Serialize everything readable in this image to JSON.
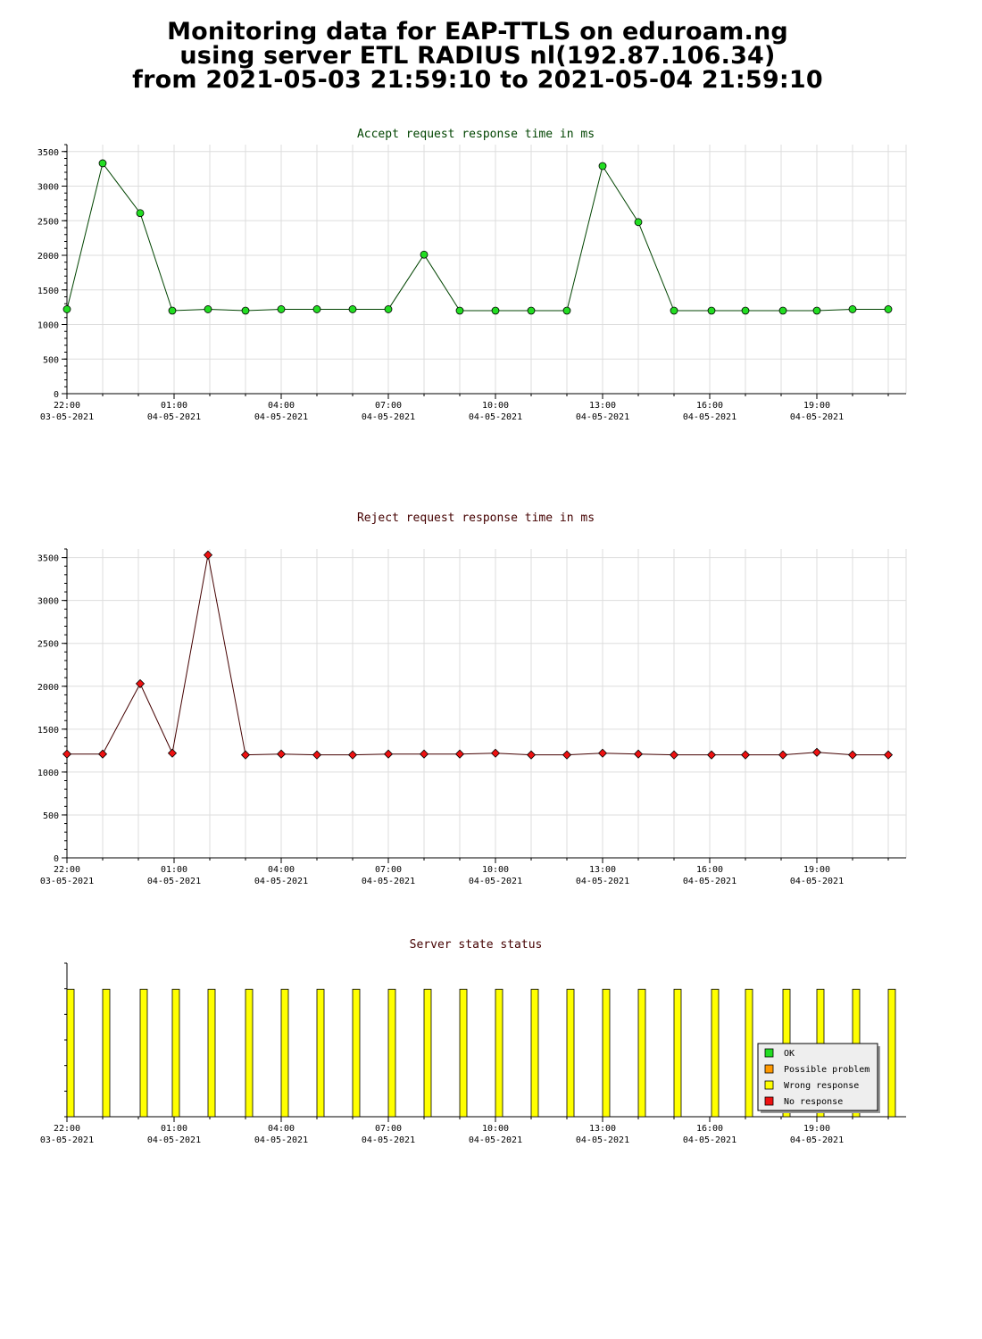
{
  "page": {
    "title_lines": [
      "Monitoring data for EAP-TTLS on eduroam.ng",
      "using server ETL RADIUS nl(192.87.106.34)",
      "from 2021-05-03 21:59:10 to 2021-05-04 21:59:10"
    ]
  },
  "x_axis_ticks": [
    {
      "time": "22:00",
      "date": "03-05-2021",
      "hours": 0
    },
    {
      "time": "01:00",
      "date": "04-05-2021",
      "hours": 3
    },
    {
      "time": "04:00",
      "date": "04-05-2021",
      "hours": 6
    },
    {
      "time": "07:00",
      "date": "04-05-2021",
      "hours": 9
    },
    {
      "time": "10:00",
      "date": "04-05-2021",
      "hours": 12
    },
    {
      "time": "13:00",
      "date": "04-05-2021",
      "hours": 15
    },
    {
      "time": "16:00",
      "date": "04-05-2021",
      "hours": 18
    },
    {
      "time": "19:00",
      "date": "04-05-2021",
      "hours": 21
    }
  ],
  "chart_data": [
    {
      "type": "line",
      "title": "Accept request response time in ms",
      "title_color": "#004400",
      "line_color": "#004400",
      "marker_color": "#22dd22",
      "ylim": [
        0,
        3600
      ],
      "yticks": [
        0,
        500,
        1000,
        1500,
        2000,
        2500,
        3000,
        3500
      ],
      "xlim_hours": [
        0,
        23.5
      ],
      "x_hours": [
        0,
        1,
        2.05,
        2.95,
        3.95,
        5,
        6,
        7,
        8,
        9,
        10,
        11,
        12,
        13,
        14,
        15,
        16,
        17,
        18.05,
        19,
        20.05,
        21,
        22,
        23
      ],
      "values": [
        1220,
        3330,
        2610,
        1200,
        1220,
        1200,
        1220,
        1220,
        1220,
        1220,
        2010,
        1200,
        1200,
        1200,
        1200,
        3290,
        2480,
        1200,
        1200,
        1200,
        1200,
        1200,
        1220,
        1220
      ]
    },
    {
      "type": "line",
      "title": "Reject request response time in ms",
      "title_color": "#440000",
      "line_color": "#440000",
      "marker_color": "#ee1111",
      "ylim": [
        0,
        3600
      ],
      "yticks": [
        0,
        500,
        1000,
        1500,
        2000,
        2500,
        3000,
        3500
      ],
      "xlim_hours": [
        0,
        23.5
      ],
      "x_hours": [
        0,
        1,
        2.05,
        2.95,
        3.95,
        5,
        6,
        7,
        8,
        9,
        10,
        11,
        12,
        13,
        14,
        15,
        16,
        17,
        18.05,
        19,
        20.05,
        21,
        22,
        23
      ],
      "values": [
        1210,
        1210,
        2030,
        1220,
        3530,
        1200,
        1210,
        1200,
        1200,
        1210,
        1210,
        1210,
        1220,
        1200,
        1200,
        1220,
        1210,
        1200,
        1200,
        1200,
        1200,
        1230,
        1200,
        1200
      ]
    },
    {
      "type": "bar",
      "title": "Server state status",
      "title_color": "#440000",
      "bar_color": "#ffff00",
      "bar_height_fraction": 0.83,
      "xlim_hours": [
        0,
        23.5
      ],
      "x_hours": [
        0.1,
        1.1,
        2.15,
        3.05,
        4.05,
        5.1,
        6.1,
        7.1,
        8.1,
        9.1,
        10.1,
        11.1,
        12.1,
        13.1,
        14.1,
        15.1,
        16.1,
        17.1,
        18.15,
        19.1,
        20.15,
        21.1,
        22.1,
        23.1
      ],
      "states": [
        "Wrong response",
        "Wrong response",
        "Wrong response",
        "Wrong response",
        "Wrong response",
        "Wrong response",
        "Wrong response",
        "Wrong response",
        "Wrong response",
        "Wrong response",
        "Wrong response",
        "Wrong response",
        "Wrong response",
        "Wrong response",
        "Wrong response",
        "Wrong response",
        "Wrong response",
        "Wrong response",
        "Wrong response",
        "Wrong response",
        "Wrong response",
        "Wrong response",
        "Wrong response",
        "Wrong response"
      ],
      "legend": [
        {
          "label": "OK",
          "color": "#22dd22"
        },
        {
          "label": "Possible problem",
          "color": "#ff9900"
        },
        {
          "label": "Wrong response",
          "color": "#ffff00"
        },
        {
          "label": "No response",
          "color": "#ee1111"
        }
      ],
      "legend_position": "bottom-right"
    }
  ]
}
